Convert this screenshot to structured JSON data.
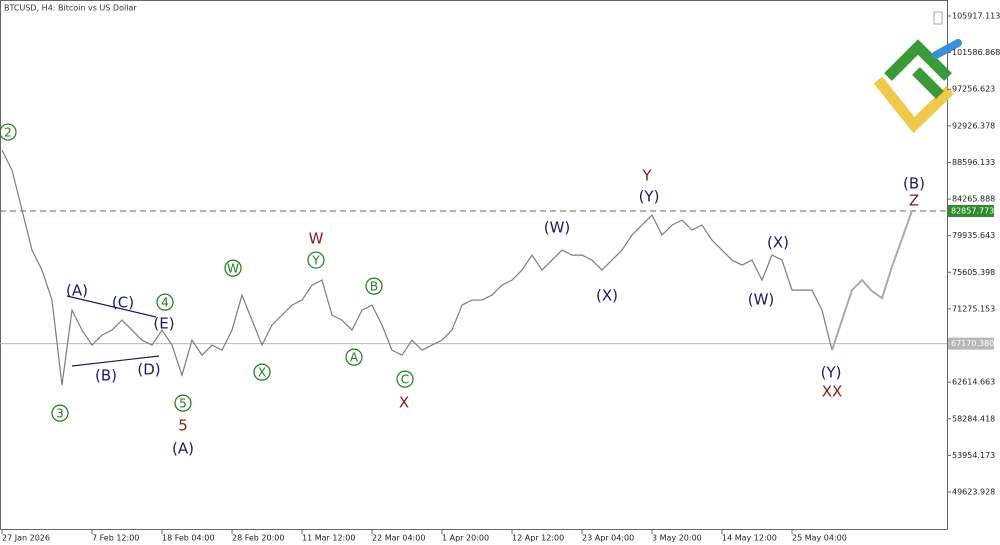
{
  "chart_data": {
    "type": "line",
    "title": "BTCUSD, H4:  Bitcoin vs US Dollar",
    "categories": [
      "27 Jan 2026",
      null,
      null,
      null,
      null,
      null,
      null,
      null,
      null,
      "7 Feb 12:00",
      null,
      null,
      null,
      null,
      null,
      null,
      "18 Feb 04:00",
      null,
      null,
      null,
      null,
      null,
      null,
      "28 Feb 20:00",
      null,
      null,
      null,
      null,
      null,
      null,
      "11 Mar 12:00",
      null,
      null,
      null,
      null,
      null,
      null,
      "22 Mar 04:00",
      null,
      null,
      null,
      null,
      null,
      null,
      "1 Apr 20:00",
      null,
      null,
      null,
      null,
      null,
      null,
      "12 Apr 12:00",
      null,
      null,
      null,
      null,
      null,
      null,
      "23 Apr 04:00",
      null,
      null,
      null,
      null,
      null,
      null,
      "3 May 20:00",
      null,
      null,
      null,
      null,
      null,
      null,
      "14 May 12:00",
      null,
      null,
      null,
      null,
      null,
      null,
      "25 May 04:00",
      null,
      null,
      null,
      null,
      null,
      null,
      null,
      null,
      null,
      null,
      null,
      null
    ],
    "series": [
      {
        "color": "#7d7d7d",
        "values": [
          90060,
          87700,
          82970,
          78230,
          75870,
          72320,
          62260,
          71130,
          68770,
          67000,
          68180,
          68770,
          69950,
          68770,
          67580,
          67000,
          68770,
          67000,
          63440,
          67580,
          65810,
          67000,
          66400,
          68770,
          72910,
          69950,
          67000,
          69360,
          70540,
          71730,
          72320,
          74090,
          74680,
          70540,
          69950,
          68770,
          71130,
          71730,
          69360,
          66400,
          65810,
          67580,
          66400,
          67000,
          67580,
          68770,
          71730,
          72320,
          72320,
          72910,
          74090,
          74680,
          75870,
          77640,
          75870,
          77050,
          78230,
          77640,
          77640,
          77050,
          75870,
          77050,
          78230,
          80010,
          81190,
          82370,
          80010,
          81190,
          81780,
          80600,
          81190,
          79410,
          78230,
          77050,
          76460,
          77050,
          74680,
          77640,
          77050,
          73500,
          73500,
          73500,
          71130,
          66400,
          null,
          null,
          null,
          null,
          null,
          null,
          null,
          null
        ]
      },
      {
        "color": "#aaaaaa",
        "values": [
          null,
          null,
          null,
          null,
          null,
          null,
          null,
          null,
          null,
          null,
          null,
          null,
          null,
          null,
          null,
          null,
          null,
          null,
          null,
          null,
          null,
          null,
          null,
          null,
          null,
          null,
          null,
          null,
          null,
          null,
          null,
          null,
          null,
          null,
          null,
          null,
          null,
          null,
          null,
          null,
          null,
          null,
          null,
          null,
          null,
          null,
          null,
          null,
          null,
          null,
          null,
          null,
          null,
          null,
          null,
          null,
          null,
          null,
          null,
          null,
          null,
          null,
          null,
          null,
          null,
          null,
          null,
          null,
          null,
          null,
          null,
          null,
          null,
          null,
          null,
          null,
          null,
          null,
          null,
          null,
          null,
          null,
          null,
          66400,
          69950,
          73500,
          74680,
          73380,
          72550,
          76280,
          79570,
          82870
        ]
      }
    ],
    "ylim": [
      45128,
      107810
    ],
    "yticks": [
      105917.113,
      101586.868,
      97256.623,
      92926.378,
      88596.133,
      84265.888,
      79935.643,
      75605.398,
      71275.153,
      62614.663,
      58284.418,
      53954.173,
      49623.928
    ],
    "levels": [
      {
        "value": 82857.773,
        "color": "#2e8b2e"
      },
      {
        "value": 67170.38,
        "label": "67170.380",
        "color": "#b8b8b8"
      }
    ],
    "annotations": [
      {
        "text": "2",
        "x": 0.6,
        "y": 92190,
        "color": "#1e7b1e",
        "circled": true
      },
      {
        "text": "3",
        "x": 5.8,
        "y": 58950,
        "color": "#1e7b1e",
        "circled": true
      },
      {
        "text": "(A)",
        "x": 7.5,
        "y": 73500,
        "color": "#1a1a6e",
        "circled": false
      },
      {
        "text": "(B)",
        "x": 10.4,
        "y": 63440,
        "color": "#1a1a6e",
        "circled": false
      },
      {
        "text": "(C)",
        "x": 12.1,
        "y": 72080,
        "color": "#1a1a6e",
        "circled": false
      },
      {
        "text": "(D)",
        "x": 14.7,
        "y": 64150,
        "color": "#1a1a6e",
        "circled": false
      },
      {
        "text": "(E)",
        "x": 16.2,
        "y": 69590,
        "color": "#1a1a6e",
        "circled": false
      },
      {
        "text": "4",
        "x": 16.3,
        "y": 72080,
        "color": "#1e7b1e",
        "circled": true
      },
      {
        "text": "5",
        "x": 18.1,
        "y": 60130,
        "color": "#1e7b1e",
        "circled": true
      },
      {
        "text": "5",
        "x": 18.1,
        "y": 57530,
        "color": "#8b1a1a",
        "circled": false
      },
      {
        "text": "(A)",
        "x": 18.1,
        "y": 54810,
        "color": "#1a1a6e",
        "circled": false
      },
      {
        "text": "W",
        "x": 23.1,
        "y": 76100,
        "color": "#1e7b1e",
        "circled": true
      },
      {
        "text": "X",
        "x": 26,
        "y": 63800,
        "color": "#1e7b1e",
        "circled": true
      },
      {
        "text": "W",
        "x": 31.4,
        "y": 79650,
        "color": "#8b1a1a",
        "circled": false
      },
      {
        "text": "Y",
        "x": 31.4,
        "y": 77050,
        "color": "#1e7b1e",
        "circled": true
      },
      {
        "text": "B",
        "x": 37.2,
        "y": 73970,
        "color": "#1e7b1e",
        "circled": true
      },
      {
        "text": "A",
        "x": 35.2,
        "y": 65570,
        "color": "#1e7b1e",
        "circled": true
      },
      {
        "text": "C",
        "x": 40.3,
        "y": 62970,
        "color": "#1e7b1e",
        "circled": true
      },
      {
        "text": "X",
        "x": 40.2,
        "y": 60250,
        "color": "#8b1a1a",
        "circled": false
      },
      {
        "text": "(W)",
        "x": 55.5,
        "y": 80950,
        "color": "#1a1a6e",
        "circled": false
      },
      {
        "text": "(X)",
        "x": 60.5,
        "y": 72910,
        "color": "#1a1a6e",
        "circled": false
      },
      {
        "text": "Y",
        "x": 64.5,
        "y": 87110,
        "color": "#8b1a1a",
        "circled": false
      },
      {
        "text": "(Y)",
        "x": 64.7,
        "y": 84620,
        "color": "#1a1a6e",
        "circled": false
      },
      {
        "text": "(X)",
        "x": 77.6,
        "y": 79180,
        "color": "#1a1a6e",
        "circled": false
      },
      {
        "text": "(W)",
        "x": 75.9,
        "y": 72440,
        "color": "#1a1a6e",
        "circled": false
      },
      {
        "text": "(Y)",
        "x": 82.9,
        "y": 63800,
        "color": "#1a1a6e",
        "circled": false
      },
      {
        "text": "XX",
        "x": 83,
        "y": 61550,
        "color": "#8b1a1a",
        "circled": false
      },
      {
        "text": "(B)",
        "x": 91.2,
        "y": 86160,
        "color": "#1a1a6e",
        "circled": false
      },
      {
        "text": "Z",
        "x": 91.2,
        "y": 84150,
        "color": "#8b1a1a",
        "circled": false
      }
    ]
  }
}
